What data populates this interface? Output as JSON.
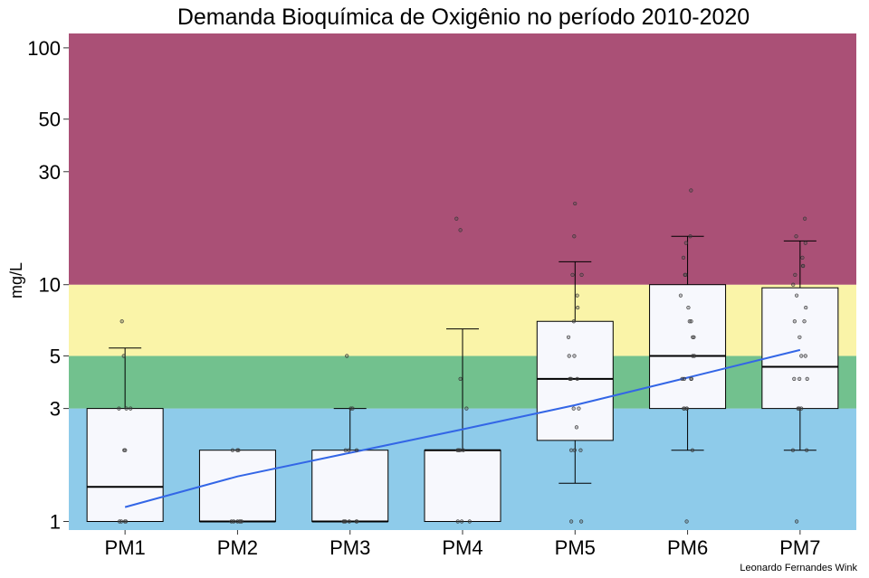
{
  "chart_data": {
    "type": "boxplot",
    "title": "Demanda Bioquímica de Oxigênio no período 2010-2020",
    "ylabel": "mg/L",
    "xlabel": "",
    "caption": "Leonardo Fernandes Wink",
    "y_scale": "log",
    "ylim": [
      0.92,
      115
    ],
    "yticks": [
      1,
      3,
      5,
      10,
      30,
      50,
      100
    ],
    "grid": false,
    "categories": [
      "PM1",
      "PM2",
      "PM3",
      "PM4",
      "PM5",
      "PM6",
      "PM7"
    ],
    "bands": [
      {
        "from": 0.92,
        "to": 3,
        "color": "#8ecbea"
      },
      {
        "from": 3,
        "to": 5,
        "color": "#72c18e"
      },
      {
        "from": 5,
        "to": 10,
        "color": "#faf4a8"
      },
      {
        "from": 10,
        "to": 115,
        "color": "#aa5076"
      }
    ],
    "boxes": [
      {
        "name": "PM1",
        "whisker_low": 1,
        "q1": 1,
        "median": 1.4,
        "q3": 3,
        "whisker_high": 5.4
      },
      {
        "name": "PM2",
        "whisker_low": 1,
        "q1": 1,
        "median": 1,
        "q3": 2,
        "whisker_high": 2
      },
      {
        "name": "PM3",
        "whisker_low": 1,
        "q1": 1,
        "median": 1,
        "q3": 2,
        "whisker_high": 3
      },
      {
        "name": "PM4",
        "whisker_low": 1,
        "q1": 1,
        "median": 2,
        "q3": 2,
        "whisker_high": 6.5
      },
      {
        "name": "PM5",
        "whisker_low": 1.45,
        "q1": 2.2,
        "median": 4,
        "q3": 7,
        "whisker_high": 12.5
      },
      {
        "name": "PM6",
        "whisker_low": 2,
        "q1": 3,
        "median": 5,
        "q3": 10,
        "whisker_high": 16
      },
      {
        "name": "PM7",
        "whisker_low": 2,
        "q1": 3,
        "median": 4.5,
        "q3": 9.7,
        "whisker_high": 15.3
      }
    ],
    "points": [
      [
        1,
        1,
        1,
        1,
        2,
        2,
        3,
        3,
        3,
        5,
        7
      ],
      [
        1,
        1,
        1,
        1,
        1,
        1,
        2,
        2,
        2
      ],
      [
        1,
        1,
        1,
        1,
        1,
        1,
        2,
        2,
        2,
        3,
        3,
        5
      ],
      [
        1,
        1,
        1,
        2,
        2,
        2,
        2,
        3,
        4,
        17,
        19
      ],
      [
        1,
        1,
        2,
        2,
        2,
        2.5,
        3,
        3,
        4,
        4,
        4,
        5,
        5,
        6,
        7,
        8,
        9,
        11,
        11,
        16,
        22
      ],
      [
        1,
        2,
        3,
        3,
        3,
        3,
        4,
        4,
        4,
        4,
        5,
        5,
        6,
        6,
        7,
        7,
        8,
        9,
        11,
        11,
        13,
        15,
        16,
        25
      ],
      [
        1,
        2,
        2,
        3,
        3,
        3,
        4,
        4,
        4,
        5,
        5,
        6,
        7,
        7,
        8,
        9,
        10,
        11,
        12,
        12,
        13,
        15,
        16,
        19
      ]
    ],
    "trend": {
      "x": [
        1,
        2,
        3,
        4,
        5,
        6,
        7
      ],
      "values": [
        1.15,
        1.55,
        1.95,
        2.45,
        3.1,
        4.05,
        5.3
      ],
      "color": "#3366e6"
    }
  }
}
